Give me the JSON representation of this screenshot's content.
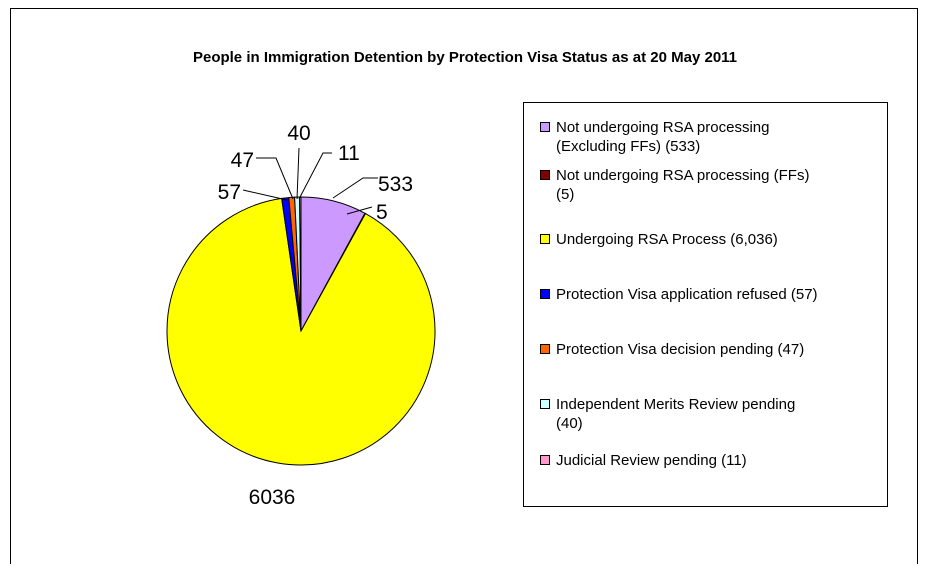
{
  "chart_data": {
    "type": "pie",
    "title": "People in Immigration Detention by Protection Visa Status as at 20 May 2011",
    "slices": [
      {
        "label": "Not undergoing RSA processing (Excluding FFs) (533)",
        "value": 533,
        "data_label": "533",
        "color": "#cc99ff"
      },
      {
        "label": "Not undergoing RSA processing (FFs) (5)",
        "value": 5,
        "data_label": "5",
        "color": "#800000"
      },
      {
        "label": "Undergoing RSA Process (6,036)",
        "value": 6036,
        "data_label": "6036",
        "color": "#ffff00"
      },
      {
        "label": "Protection Visa application refused (57)",
        "value": 57,
        "data_label": "57",
        "color": "#0000ff"
      },
      {
        "label": "Protection Visa decision pending (47)",
        "value": 47,
        "data_label": "47",
        "color": "#ff6600"
      },
      {
        "label": "Independent Merits Review pending (40)",
        "value": 40,
        "data_label": "40",
        "color": "#ccffff"
      },
      {
        "label": "Judicial Review pending (11)",
        "value": 11,
        "data_label": "11",
        "color": "#ff99cc"
      }
    ],
    "legend": {
      "position": "right",
      "lines": [
        [
          "Not undergoing RSA processing",
          "(Excluding FFs) (533)"
        ],
        [
          "Not undergoing RSA processing (FFs)",
          "(5)"
        ],
        [
          "Undergoing RSA Process (6,036)"
        ],
        [
          "Protection Visa application refused (57)"
        ],
        [
          "Protection Visa decision pending (47)"
        ],
        [
          "Independent Merits Review pending",
          "(40)"
        ],
        [
          "Judicial Review pending (11)"
        ]
      ]
    }
  }
}
